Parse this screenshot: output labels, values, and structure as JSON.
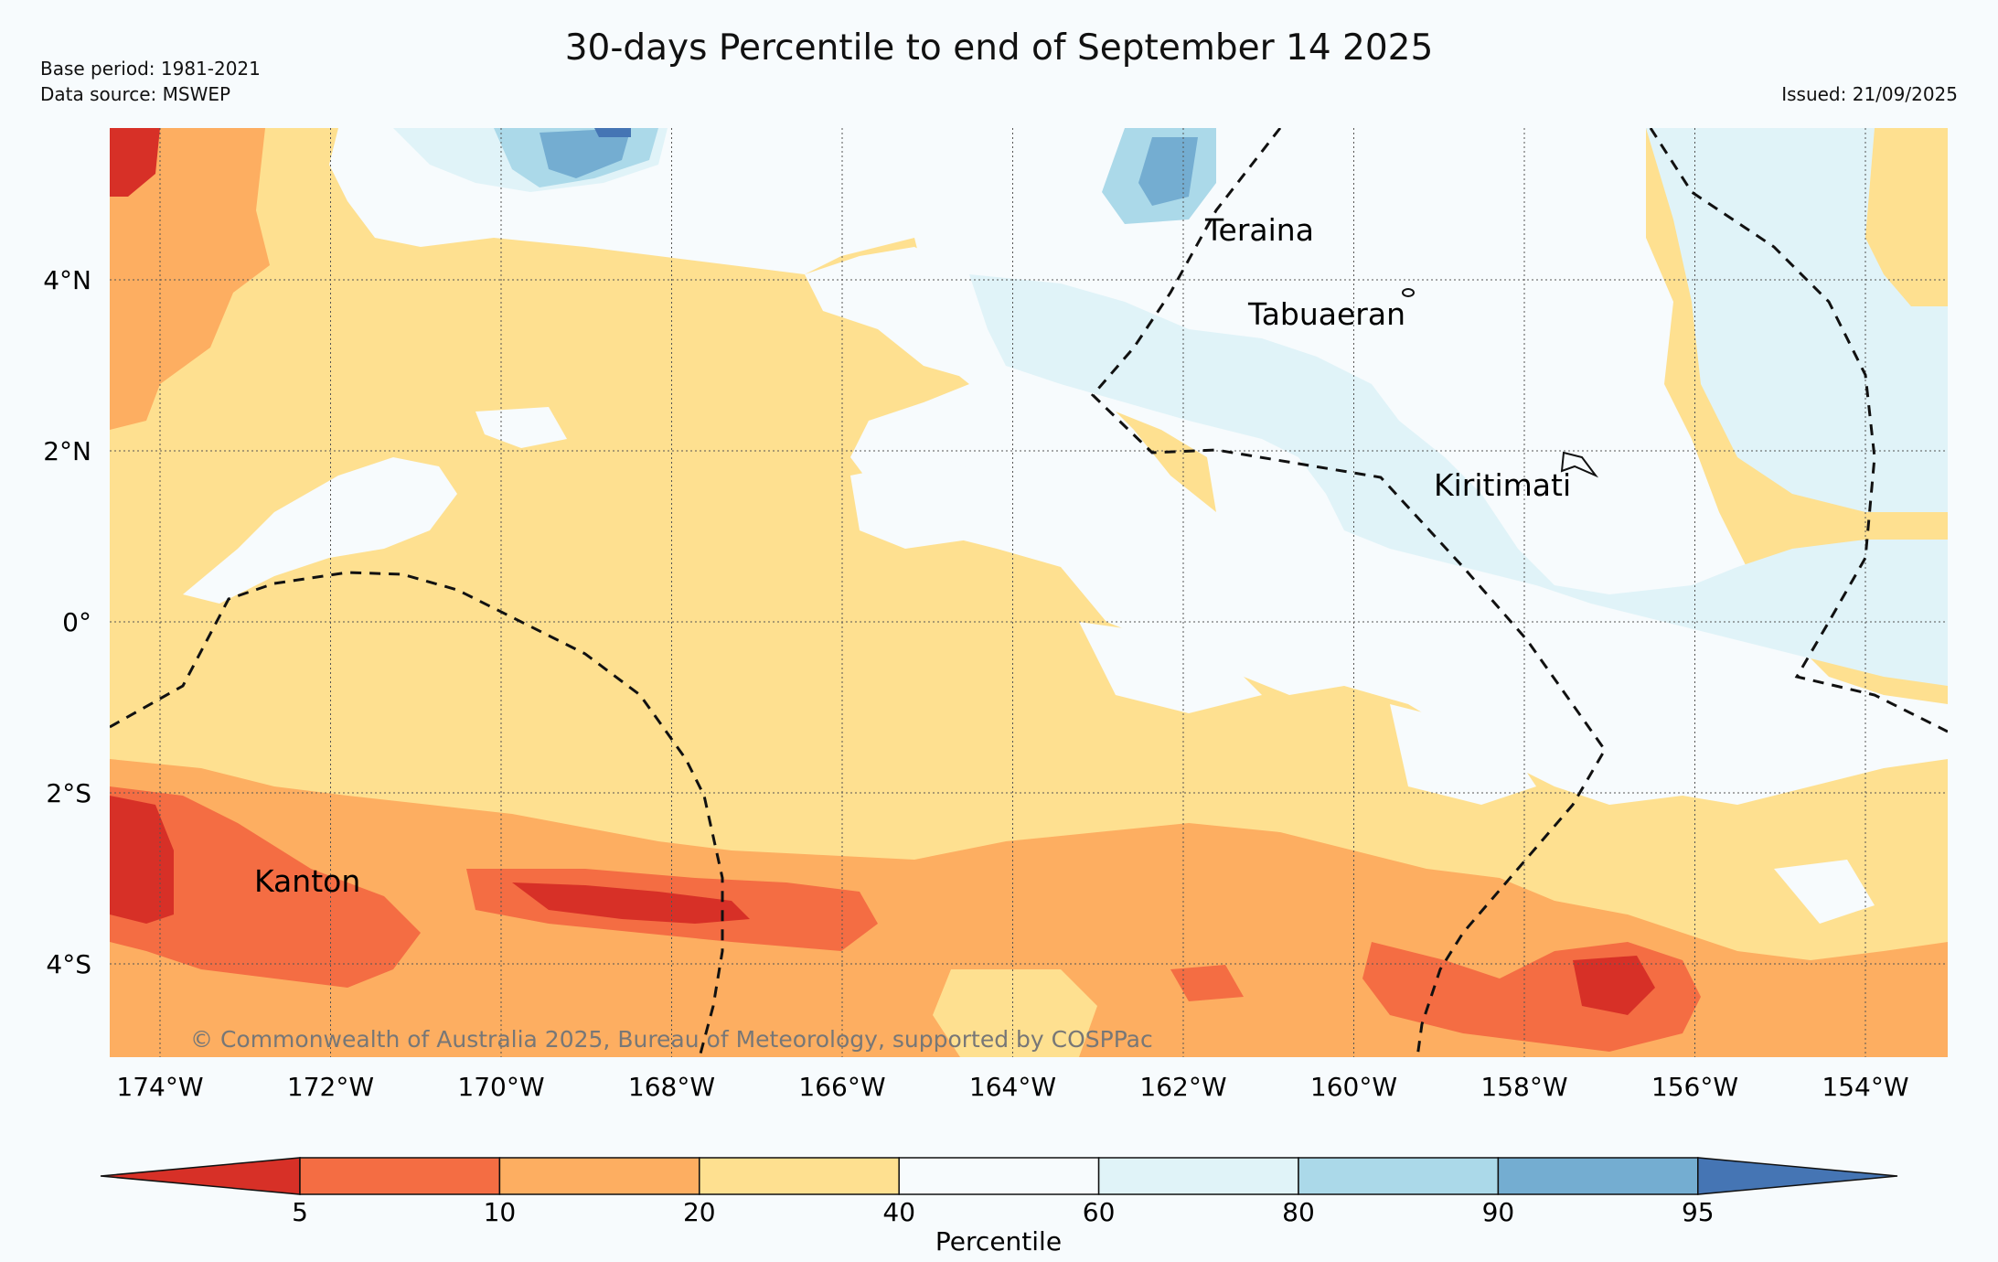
{
  "title": "30-days Percentile to end of September 14 2025",
  "meta": {
    "base_period": "Base period: 1981-2021",
    "data_source": "Data source: MSWEP",
    "issued": "Issued: 21/09/2025"
  },
  "map": {
    "lon_labels": [
      "174°W",
      "172°W",
      "170°W",
      "168°W",
      "166°W",
      "164°W",
      "162°W",
      "160°W",
      "158°W",
      "156°W",
      "154°W"
    ],
    "lat_labels": [
      "4°N",
      "2°N",
      "0°",
      "2°S",
      "4°S"
    ],
    "places": [
      "Teraina",
      "Tabuaeran",
      "Kiritimati",
      "Kanton"
    ],
    "copyright": "© Commonwealth of Australia 2025, Bureau of Meteorology, supported by COSPPac"
  },
  "legend": {
    "label": "Percentile",
    "ticks": [
      "5",
      "10",
      "20",
      "40",
      "60",
      "80",
      "90",
      "95"
    ],
    "colors": [
      "#d73027",
      "#f46d43",
      "#fdae61",
      "#fee090",
      "#f7fbfd",
      "#e0f3f8",
      "#abd9e9",
      "#74add1",
      "#4575b4"
    ]
  }
}
